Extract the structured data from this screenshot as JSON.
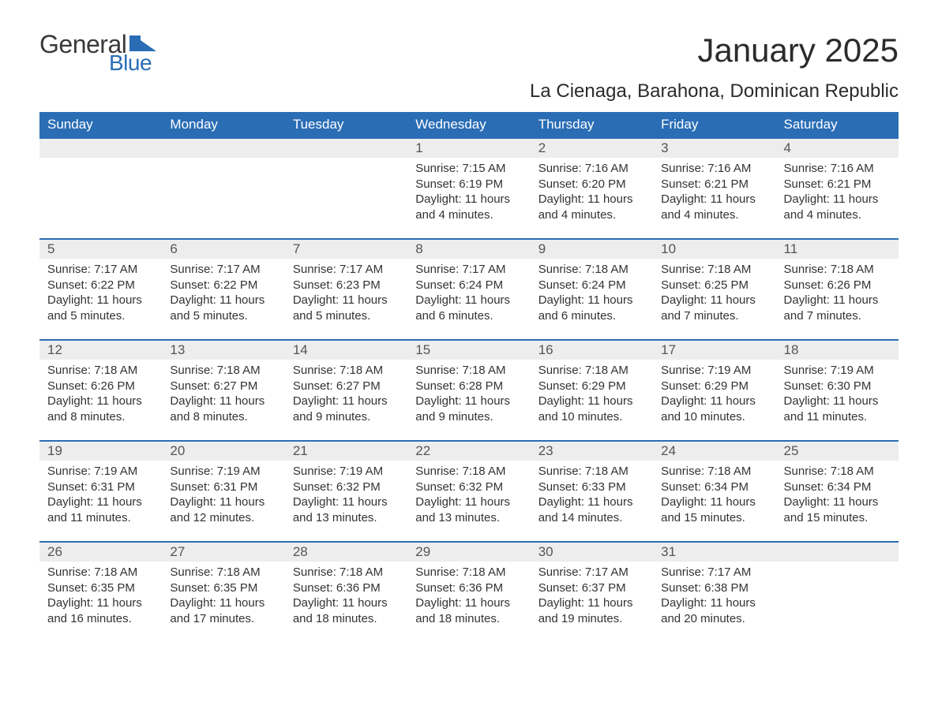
{
  "logo": {
    "word1": "General",
    "word2": "Blue",
    "color_general": "#3a3a3a",
    "color_blue": "#2a6db5",
    "shape_color": "#2a6db5"
  },
  "title": "January 2025",
  "location": "La Cienaga, Barahona, Dominican Republic",
  "colors": {
    "header_bg": "#2a6db5",
    "header_text": "#ffffff",
    "daynum_bg": "#ededed",
    "daynum_border": "#2a6db5",
    "text": "#333333",
    "daynum_text": "#555555",
    "page_bg": "#ffffff"
  },
  "typography": {
    "title_fontsize": 42,
    "location_fontsize": 24,
    "header_fontsize": 17,
    "daynum_fontsize": 17,
    "body_fontsize": 15
  },
  "calendar": {
    "columns": [
      "Sunday",
      "Monday",
      "Tuesday",
      "Wednesday",
      "Thursday",
      "Friday",
      "Saturday"
    ],
    "weeks": [
      [
        null,
        null,
        null,
        {
          "num": "1",
          "sunrise": "Sunrise: 7:15 AM",
          "sunset": "Sunset: 6:19 PM",
          "daylight": "Daylight: 11 hours and 4 minutes."
        },
        {
          "num": "2",
          "sunrise": "Sunrise: 7:16 AM",
          "sunset": "Sunset: 6:20 PM",
          "daylight": "Daylight: 11 hours and 4 minutes."
        },
        {
          "num": "3",
          "sunrise": "Sunrise: 7:16 AM",
          "sunset": "Sunset: 6:21 PM",
          "daylight": "Daylight: 11 hours and 4 minutes."
        },
        {
          "num": "4",
          "sunrise": "Sunrise: 7:16 AM",
          "sunset": "Sunset: 6:21 PM",
          "daylight": "Daylight: 11 hours and 4 minutes."
        }
      ],
      [
        {
          "num": "5",
          "sunrise": "Sunrise: 7:17 AM",
          "sunset": "Sunset: 6:22 PM",
          "daylight": "Daylight: 11 hours and 5 minutes."
        },
        {
          "num": "6",
          "sunrise": "Sunrise: 7:17 AM",
          "sunset": "Sunset: 6:22 PM",
          "daylight": "Daylight: 11 hours and 5 minutes."
        },
        {
          "num": "7",
          "sunrise": "Sunrise: 7:17 AM",
          "sunset": "Sunset: 6:23 PM",
          "daylight": "Daylight: 11 hours and 5 minutes."
        },
        {
          "num": "8",
          "sunrise": "Sunrise: 7:17 AM",
          "sunset": "Sunset: 6:24 PM",
          "daylight": "Daylight: 11 hours and 6 minutes."
        },
        {
          "num": "9",
          "sunrise": "Sunrise: 7:18 AM",
          "sunset": "Sunset: 6:24 PM",
          "daylight": "Daylight: 11 hours and 6 minutes."
        },
        {
          "num": "10",
          "sunrise": "Sunrise: 7:18 AM",
          "sunset": "Sunset: 6:25 PM",
          "daylight": "Daylight: 11 hours and 7 minutes."
        },
        {
          "num": "11",
          "sunrise": "Sunrise: 7:18 AM",
          "sunset": "Sunset: 6:26 PM",
          "daylight": "Daylight: 11 hours and 7 minutes."
        }
      ],
      [
        {
          "num": "12",
          "sunrise": "Sunrise: 7:18 AM",
          "sunset": "Sunset: 6:26 PM",
          "daylight": "Daylight: 11 hours and 8 minutes."
        },
        {
          "num": "13",
          "sunrise": "Sunrise: 7:18 AM",
          "sunset": "Sunset: 6:27 PM",
          "daylight": "Daylight: 11 hours and 8 minutes."
        },
        {
          "num": "14",
          "sunrise": "Sunrise: 7:18 AM",
          "sunset": "Sunset: 6:27 PM",
          "daylight": "Daylight: 11 hours and 9 minutes."
        },
        {
          "num": "15",
          "sunrise": "Sunrise: 7:18 AM",
          "sunset": "Sunset: 6:28 PM",
          "daylight": "Daylight: 11 hours and 9 minutes."
        },
        {
          "num": "16",
          "sunrise": "Sunrise: 7:18 AM",
          "sunset": "Sunset: 6:29 PM",
          "daylight": "Daylight: 11 hours and 10 minutes."
        },
        {
          "num": "17",
          "sunrise": "Sunrise: 7:19 AM",
          "sunset": "Sunset: 6:29 PM",
          "daylight": "Daylight: 11 hours and 10 minutes."
        },
        {
          "num": "18",
          "sunrise": "Sunrise: 7:19 AM",
          "sunset": "Sunset: 6:30 PM",
          "daylight": "Daylight: 11 hours and 11 minutes."
        }
      ],
      [
        {
          "num": "19",
          "sunrise": "Sunrise: 7:19 AM",
          "sunset": "Sunset: 6:31 PM",
          "daylight": "Daylight: 11 hours and 11 minutes."
        },
        {
          "num": "20",
          "sunrise": "Sunrise: 7:19 AM",
          "sunset": "Sunset: 6:31 PM",
          "daylight": "Daylight: 11 hours and 12 minutes."
        },
        {
          "num": "21",
          "sunrise": "Sunrise: 7:19 AM",
          "sunset": "Sunset: 6:32 PM",
          "daylight": "Daylight: 11 hours and 13 minutes."
        },
        {
          "num": "22",
          "sunrise": "Sunrise: 7:18 AM",
          "sunset": "Sunset: 6:32 PM",
          "daylight": "Daylight: 11 hours and 13 minutes."
        },
        {
          "num": "23",
          "sunrise": "Sunrise: 7:18 AM",
          "sunset": "Sunset: 6:33 PM",
          "daylight": "Daylight: 11 hours and 14 minutes."
        },
        {
          "num": "24",
          "sunrise": "Sunrise: 7:18 AM",
          "sunset": "Sunset: 6:34 PM",
          "daylight": "Daylight: 11 hours and 15 minutes."
        },
        {
          "num": "25",
          "sunrise": "Sunrise: 7:18 AM",
          "sunset": "Sunset: 6:34 PM",
          "daylight": "Daylight: 11 hours and 15 minutes."
        }
      ],
      [
        {
          "num": "26",
          "sunrise": "Sunrise: 7:18 AM",
          "sunset": "Sunset: 6:35 PM",
          "daylight": "Daylight: 11 hours and 16 minutes."
        },
        {
          "num": "27",
          "sunrise": "Sunrise: 7:18 AM",
          "sunset": "Sunset: 6:35 PM",
          "daylight": "Daylight: 11 hours and 17 minutes."
        },
        {
          "num": "28",
          "sunrise": "Sunrise: 7:18 AM",
          "sunset": "Sunset: 6:36 PM",
          "daylight": "Daylight: 11 hours and 18 minutes."
        },
        {
          "num": "29",
          "sunrise": "Sunrise: 7:18 AM",
          "sunset": "Sunset: 6:36 PM",
          "daylight": "Daylight: 11 hours and 18 minutes."
        },
        {
          "num": "30",
          "sunrise": "Sunrise: 7:17 AM",
          "sunset": "Sunset: 6:37 PM",
          "daylight": "Daylight: 11 hours and 19 minutes."
        },
        {
          "num": "31",
          "sunrise": "Sunrise: 7:17 AM",
          "sunset": "Sunset: 6:38 PM",
          "daylight": "Daylight: 11 hours and 20 minutes."
        },
        null
      ]
    ]
  }
}
